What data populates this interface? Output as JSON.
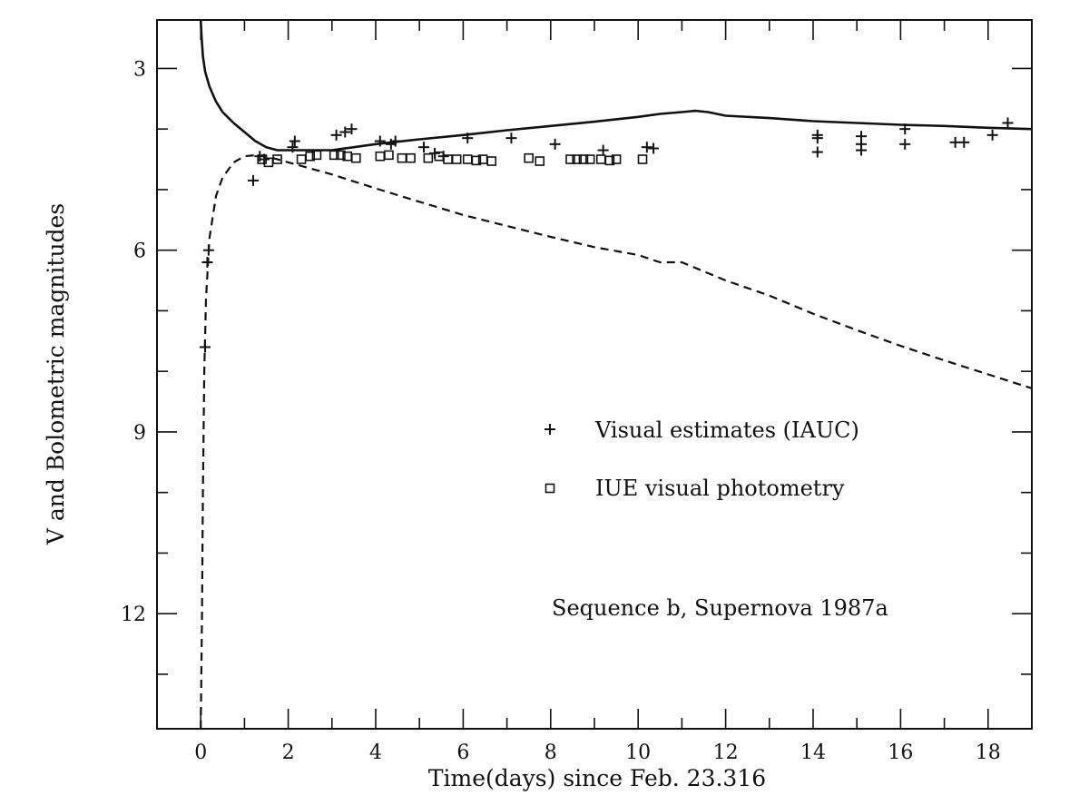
{
  "chart_data": {
    "type": "line",
    "title": "",
    "xlabel": "Time(days) since Feb. 23.316",
    "ylabel": "V and Bolometric magnitudes",
    "xlim": [
      -1,
      19
    ],
    "ylim": [
      13.9,
      2.2
    ],
    "y_inverted": true,
    "x_ticks": [
      0,
      2,
      4,
      6,
      8,
      10,
      12,
      14,
      16,
      18
    ],
    "y_ticks": [
      3,
      6,
      9,
      12
    ],
    "legend": {
      "placement": "middle-right",
      "entries": [
        {
          "symbol": "plus",
          "label": "Visual estimates (IAUC)"
        },
        {
          "symbol": "square",
          "label": "IUE visual photometry"
        }
      ]
    },
    "annotation": "Sequence b, Supernova 1987a",
    "series": [
      {
        "style": "solid",
        "x": [
          0.0,
          0.02,
          0.05,
          0.1,
          0.2,
          0.35,
          0.5,
          0.75,
          1.0,
          1.25,
          1.5,
          1.75,
          2.0,
          3.0,
          4.0,
          5.0,
          6.0,
          7.0,
          8.0,
          9.0,
          10.0,
          10.5,
          11.0,
          11.3,
          11.6,
          12.0,
          13.0,
          14.0,
          15.0,
          16.0,
          17.0,
          18.0,
          19.0
        ],
        "y": [
          2.2,
          2.5,
          2.8,
          3.05,
          3.3,
          3.55,
          3.72,
          3.9,
          4.05,
          4.2,
          4.3,
          4.35,
          4.35,
          4.35,
          4.25,
          4.17,
          4.1,
          4.02,
          3.95,
          3.88,
          3.8,
          3.75,
          3.72,
          3.7,
          3.72,
          3.78,
          3.82,
          3.87,
          3.9,
          3.93,
          3.95,
          3.98,
          4.0
        ]
      },
      {
        "style": "dashed",
        "x": [
          0.0,
          0.03,
          0.05,
          0.08,
          0.12,
          0.2,
          0.35,
          0.5,
          0.75,
          1.0,
          1.25,
          1.5,
          2.0,
          3.0,
          4.0,
          5.0,
          6.0,
          7.0,
          8.0,
          9.0,
          10.0,
          10.5,
          11.0,
          11.5,
          12.0,
          13.0,
          14.0,
          15.0,
          16.0,
          17.0,
          18.0,
          19.0
        ],
        "y": [
          13.9,
          12.0,
          10.0,
          8.0,
          6.8,
          5.8,
          5.1,
          4.8,
          4.55,
          4.45,
          4.43,
          4.45,
          4.55,
          4.75,
          4.98,
          5.2,
          5.42,
          5.6,
          5.78,
          5.95,
          6.08,
          6.2,
          6.2,
          6.35,
          6.5,
          6.75,
          7.05,
          7.32,
          7.58,
          7.82,
          8.05,
          8.28
        ]
      },
      {
        "name": "Visual estimates (IAUC)",
        "style": "plus",
        "points": [
          [
            0.1,
            7.6
          ],
          [
            0.15,
            6.2
          ],
          [
            0.18,
            6.0
          ],
          [
            1.2,
            4.85
          ],
          [
            1.35,
            4.45
          ],
          [
            1.45,
            4.5
          ],
          [
            2.1,
            4.3
          ],
          [
            2.15,
            4.2
          ],
          [
            3.1,
            4.1
          ],
          [
            3.3,
            4.05
          ],
          [
            3.45,
            4.0
          ],
          [
            4.1,
            4.2
          ],
          [
            4.35,
            4.25
          ],
          [
            4.45,
            4.2
          ],
          [
            5.1,
            4.3
          ],
          [
            5.35,
            4.4
          ],
          [
            5.55,
            4.45
          ],
          [
            6.1,
            4.15
          ],
          [
            7.1,
            4.15
          ],
          [
            8.1,
            4.25
          ],
          [
            9.2,
            4.35
          ],
          [
            10.2,
            4.3
          ],
          [
            10.35,
            4.32
          ],
          [
            14.1,
            4.1
          ],
          [
            14.1,
            4.15
          ],
          [
            14.1,
            4.38
          ],
          [
            15.1,
            4.12
          ],
          [
            15.1,
            4.25
          ],
          [
            15.1,
            4.35
          ],
          [
            16.1,
            4.0
          ],
          [
            16.1,
            4.25
          ],
          [
            17.25,
            4.22
          ],
          [
            17.45,
            4.22
          ],
          [
            18.1,
            4.1
          ],
          [
            18.45,
            3.9
          ]
        ]
      },
      {
        "name": "IUE visual photometry",
        "style": "square",
        "points": [
          [
            1.4,
            4.5
          ],
          [
            1.55,
            4.55
          ],
          [
            1.75,
            4.5
          ],
          [
            2.3,
            4.5
          ],
          [
            2.5,
            4.45
          ],
          [
            2.65,
            4.43
          ],
          [
            3.05,
            4.43
          ],
          [
            3.2,
            4.43
          ],
          [
            3.35,
            4.45
          ],
          [
            3.55,
            4.48
          ],
          [
            4.1,
            4.45
          ],
          [
            4.3,
            4.43
          ],
          [
            4.6,
            4.48
          ],
          [
            4.8,
            4.48
          ],
          [
            5.2,
            4.48
          ],
          [
            5.45,
            4.45
          ],
          [
            5.65,
            4.5
          ],
          [
            5.85,
            4.5
          ],
          [
            6.1,
            4.5
          ],
          [
            6.3,
            4.52
          ],
          [
            6.45,
            4.5
          ],
          [
            6.65,
            4.53
          ],
          [
            7.5,
            4.48
          ],
          [
            7.75,
            4.53
          ],
          [
            8.45,
            4.5
          ],
          [
            8.6,
            4.5
          ],
          [
            8.75,
            4.5
          ],
          [
            8.9,
            4.5
          ],
          [
            9.15,
            4.5
          ],
          [
            9.35,
            4.52
          ],
          [
            9.5,
            4.5
          ],
          [
            10.1,
            4.5
          ]
        ]
      }
    ]
  }
}
